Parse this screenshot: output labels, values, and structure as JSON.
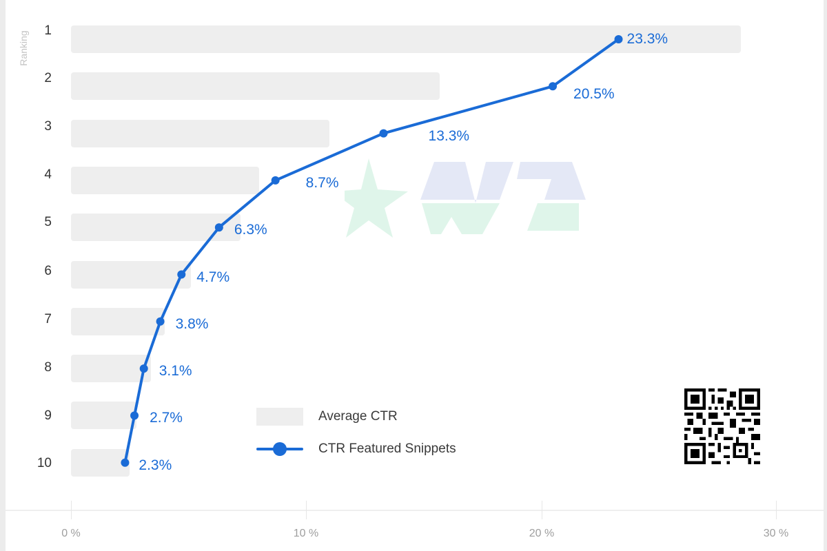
{
  "chart_data": {
    "type": "bar",
    "orientation": "horizontal",
    "title": "",
    "xlabel": "",
    "ylabel": "Ranking",
    "categories": [
      "1",
      "2",
      "3",
      "4",
      "5",
      "6",
      "7",
      "8",
      "9",
      "10"
    ],
    "xlim": [
      0,
      30
    ],
    "x_ticks": [
      "0 %",
      "10 %",
      "20 %",
      "30 %"
    ],
    "grid": false,
    "legend_position": "bottom-center-inside",
    "series": [
      {
        "name": "Average CTR",
        "type": "bar",
        "color": "#eeeeee",
        "values": [
          28.5,
          15.7,
          11.0,
          8.0,
          7.2,
          5.1,
          4.0,
          3.4,
          2.8,
          2.5
        ]
      },
      {
        "name": "CTR Featured Snippets",
        "type": "line",
        "color": "#1a6bd6",
        "values": [
          23.3,
          20.5,
          13.3,
          8.7,
          6.3,
          4.7,
          3.8,
          3.1,
          2.7,
          2.3
        ],
        "labels": [
          "23.3%",
          "20.5%",
          "13.3%",
          "8.7%",
          "6.3%",
          "4.7%",
          "3.8%",
          "3.1%",
          "2.7%",
          "2.3%"
        ]
      }
    ]
  },
  "axis": {
    "y_title": "Ranking",
    "x_ticks": [
      "0 %",
      "10 %",
      "20 %",
      "30 %"
    ]
  },
  "legend": {
    "items": [
      {
        "label": "Average CTR"
      },
      {
        "label": "CTR Featured Snippets"
      }
    ]
  },
  "colors": {
    "line": "#1a6bd6",
    "bar": "#eeeeee",
    "watermark_green": "#dff5ea",
    "watermark_blue": "#e4e8f6"
  },
  "icons": {
    "watermark": "star-wz-logo-icon",
    "qr": "qr-code-icon"
  }
}
